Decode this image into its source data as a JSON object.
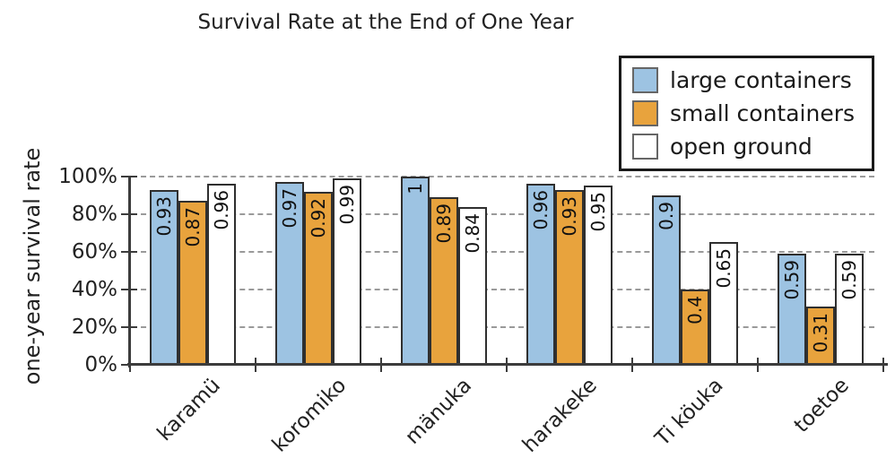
{
  "chart_data": {
    "type": "bar",
    "title": "Survival Rate at the End of One Year",
    "ylabel": "one-year survival rate",
    "xlabel": "",
    "categories": [
      "karamü",
      "koromiko",
      "mänuka",
      "harakeke",
      "Ti köuka",
      "toetoe"
    ],
    "series": [
      {
        "name": "large containers",
        "color": "#9DC3E2",
        "values": [
          0.93,
          0.97,
          1,
          0.96,
          0.9,
          0.59
        ],
        "labels": [
          "0.93",
          "0.97",
          "1",
          "0.96",
          "0.9",
          "0.59"
        ]
      },
      {
        "name": "small containers",
        "color": "#E8A33D",
        "values": [
          0.87,
          0.92,
          0.89,
          0.93,
          0.4,
          0.31
        ],
        "labels": [
          "0.87",
          "0.92",
          "0.89",
          "0.93",
          "0.4",
          "0.31"
        ]
      },
      {
        "name": "open ground",
        "color": "#FFFFFF",
        "values": [
          0.96,
          0.99,
          0.84,
          0.95,
          0.65,
          0.59
        ],
        "labels": [
          "0.96",
          "0.99",
          "0.84",
          "0.95",
          "0.65",
          "0.59"
        ]
      }
    ],
    "ylim": [
      0,
      1
    ],
    "ytick_labels": [
      "0%",
      "20%",
      "40%",
      "60%",
      "80%",
      "100%"
    ],
    "grid": "horizontal-dashed",
    "legend_position": "top-right",
    "value_labels": "inside-top-rotated-90"
  },
  "style": {
    "bar_border_color": "#2F2F2F",
    "axis_color": "#3C3C3C",
    "grid_color": "#9A9A9A",
    "text_color": "#1A1A1A",
    "legend_border_color": "#1A1A1A",
    "swatch_border_color": "#666666",
    "background": "#FFFFFF"
  }
}
